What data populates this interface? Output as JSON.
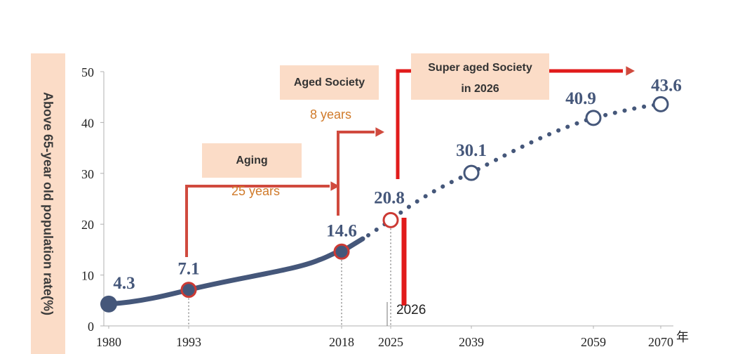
{
  "chart_data": {
    "type": "line",
    "ylabel": "Above 65-year old population rate(%)",
    "xunit": "年",
    "ylim": [
      0,
      50
    ],
    "yticks": [
      0,
      10,
      20,
      30,
      40,
      50
    ],
    "x": [
      1980,
      1993,
      2018,
      2025,
      2039,
      2059,
      2070
    ],
    "values": [
      4.3,
      7.1,
      14.6,
      20.8,
      30.1,
      40.9,
      43.6
    ],
    "value_labels": [
      "4.3",
      "7.1",
      "14.6",
      "20.8",
      "30.1",
      "40.9",
      "43.6"
    ],
    "actual_until": 2018,
    "projected_from": 2025,
    "colors": {
      "line": "#45577a",
      "highlight": "#cc3a34",
      "arrow": "#d04a3e",
      "box": "#fbdcc7",
      "duration_text": "#d07a2a"
    }
  },
  "annotations": {
    "aging_label": "Aging",
    "aging_duration": "25 years",
    "aged_label": "Aged Society",
    "aged_duration": "8 years",
    "super_label_line1": "Super aged Society",
    "super_label_line2": "in 2026",
    "marker_year": "2026"
  }
}
